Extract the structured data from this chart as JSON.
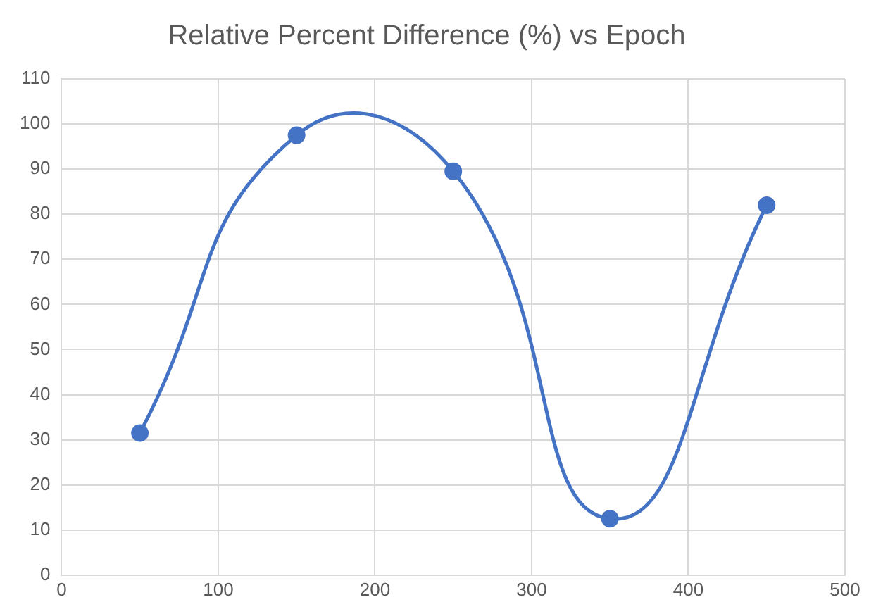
{
  "chart_data": {
    "type": "line",
    "title": "Relative Percent Difference (%) vs Epoch",
    "x": [
      50,
      150,
      250,
      350,
      450
    ],
    "series": [
      {
        "color": "#4472c4",
        "values": [
          31.5,
          97.5,
          89.5,
          12.5,
          82
        ]
      }
    ],
    "xlim": [
      0,
      500
    ],
    "xticks": [
      0,
      100,
      200,
      300,
      400,
      500
    ],
    "ylim": [
      0,
      110
    ],
    "yticks": [
      0,
      10,
      20,
      30,
      40,
      50,
      60,
      70,
      80,
      90,
      100,
      110
    ],
    "grid": true,
    "legend": false,
    "marker": "circle",
    "line_style": "solid"
  }
}
